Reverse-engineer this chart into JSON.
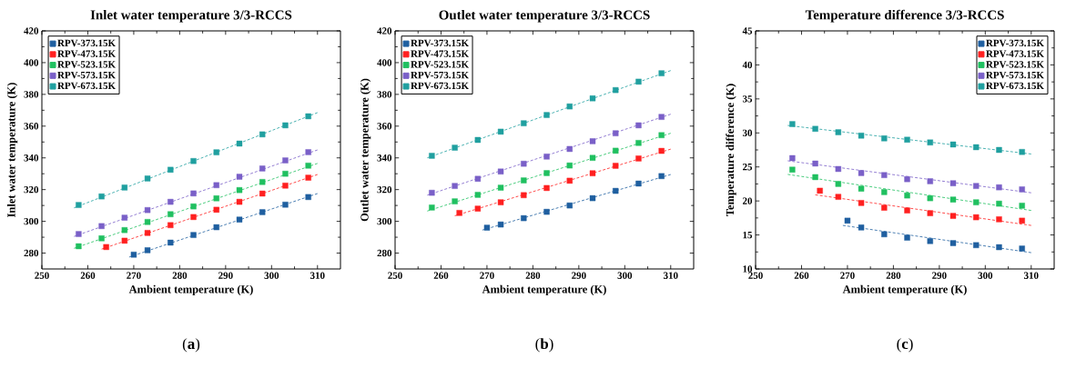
{
  "chart_data": [
    {
      "type": "scatter",
      "title": "Inlet water temperature 3/3-RCCS",
      "xlabel": "Ambient temperature (K)",
      "ylabel": "Inlet water temperature (K)",
      "xlim": [
        250,
        315
      ],
      "xticks": [
        250,
        260,
        270,
        280,
        290,
        300,
        310
      ],
      "ylim": [
        270,
        420
      ],
      "yticks": [
        280,
        300,
        320,
        340,
        360,
        380,
        400,
        420
      ],
      "marker": "square",
      "legend": "top left",
      "annotations": [
        "(**a**)"
      ],
      "series": [
        {
          "name": "RPV-373.15K",
          "color": "#1f5fa0",
          "x": [
            270,
            273,
            278,
            283,
            288,
            293,
            298,
            303,
            308
          ],
          "values": [
            279,
            281.8,
            286.6,
            291.4,
            296.3,
            301.1,
            305.8,
            310.5,
            315.3
          ]
        },
        {
          "name": "RPV-473.15K",
          "color": "#ff2020",
          "x": [
            264,
            268,
            273,
            278,
            283,
            288,
            293,
            298,
            303,
            308
          ],
          "values": [
            283.8,
            287.8,
            292.7,
            297.6,
            302.7,
            307.3,
            312.3,
            317.5,
            322.5,
            327.5
          ]
        },
        {
          "name": "RPV-523.15K",
          "color": "#20c060",
          "x": [
            258,
            263,
            268,
            273,
            278,
            283,
            288,
            293,
            298,
            303,
            308
          ],
          "values": [
            284.3,
            289.3,
            294.5,
            299.6,
            304.5,
            309.4,
            314.5,
            319.7,
            324.8,
            330,
            335.1
          ]
        },
        {
          "name": "RPV-573.15K",
          "color": "#7a60c8",
          "x": [
            258,
            263,
            268,
            273,
            278,
            283,
            288,
            293,
            298,
            303,
            308
          ],
          "values": [
            292,
            297,
            302.3,
            307.1,
            312.3,
            317.6,
            322.8,
            328.1,
            333.3,
            338.4,
            343.6
          ]
        },
        {
          "name": "RPV-673.15K",
          "color": "#20a0a0",
          "x": [
            258,
            263,
            268,
            273,
            278,
            283,
            288,
            293,
            298,
            303,
            308
          ],
          "values": [
            310.3,
            315.7,
            321.3,
            327,
            332.5,
            338,
            343.5,
            349,
            354.8,
            360.5,
            366.2
          ]
        },
        {
          "type": "line",
          "line_style": "dashed",
          "marker": "none",
          "color": "#1f5fa0",
          "x": [
            269,
            310
          ],
          "values": [
            277.5,
            317.5
          ]
        },
        {
          "type": "line",
          "line_style": "dashed",
          "marker": "none",
          "color": "#ff2020",
          "x": [
            263,
            310
          ],
          "values": [
            282.5,
            329.5
          ]
        },
        {
          "type": "line",
          "line_style": "dashed",
          "marker": "none",
          "color": "#20c060",
          "x": [
            257,
            310
          ],
          "values": [
            283,
            336.5
          ]
        },
        {
          "type": "line",
          "line_style": "dashed",
          "marker": "none",
          "color": "#7a60c8",
          "x": [
            257,
            310
          ],
          "values": [
            290.5,
            345
          ]
        },
        {
          "type": "line",
          "line_style": "dashed",
          "marker": "none",
          "color": "#20a0a0",
          "x": [
            257,
            310
          ],
          "values": [
            308.5,
            368.5
          ]
        }
      ]
    },
    {
      "type": "scatter",
      "title": "Outlet water temperature 3/3-RCCS",
      "xlabel": "Ambient temperature (K)",
      "ylabel": "Outlet water temperature (K)",
      "xlim": [
        250,
        315
      ],
      "xticks": [
        250,
        260,
        270,
        280,
        290,
        300,
        310
      ],
      "ylim": [
        270,
        420
      ],
      "yticks": [
        280,
        300,
        320,
        340,
        360,
        380,
        400,
        420
      ],
      "marker": "square",
      "legend": "top left",
      "annotations": [
        "(**b**)"
      ],
      "series": [
        {
          "name": "RPV-373.15K",
          "color": "#1f5fa0",
          "x": [
            270,
            273,
            278,
            283,
            288,
            293,
            298,
            303,
            308
          ],
          "values": [
            296,
            298,
            302,
            306,
            310,
            314.6,
            319.2,
            323.8,
            328.5
          ]
        },
        {
          "name": "RPV-473.15K",
          "color": "#ff2020",
          "x": [
            264,
            268,
            273,
            278,
            283,
            288,
            293,
            298,
            303,
            308
          ],
          "values": [
            305.3,
            308,
            312,
            316.5,
            321,
            325.6,
            330.3,
            335,
            339.6,
            344.4
          ]
        },
        {
          "name": "RPV-523.15K",
          "color": "#20c060",
          "x": [
            258,
            263,
            268,
            273,
            278,
            283,
            288,
            293,
            298,
            303,
            308
          ],
          "values": [
            308.7,
            312.6,
            316.7,
            321.2,
            325.8,
            330.4,
            335.2,
            340,
            344.5,
            349.4,
            354.3
          ]
        },
        {
          "name": "RPV-573.15K",
          "color": "#7a60c8",
          "x": [
            258,
            263,
            268,
            273,
            278,
            283,
            288,
            293,
            298,
            303,
            308
          ],
          "values": [
            318,
            322.3,
            326.8,
            331.4,
            336.3,
            340.8,
            345.6,
            350.5,
            355.5,
            360.5,
            365.8
          ]
        },
        {
          "name": "RPV-673.15K",
          "color": "#20a0a0",
          "x": [
            258,
            263,
            268,
            273,
            278,
            283,
            288,
            293,
            298,
            303,
            308
          ],
          "values": [
            341.3,
            346.4,
            351.3,
            356.5,
            361.8,
            367,
            372.4,
            377.5,
            382.7,
            388,
            393.3
          ]
        },
        {
          "type": "line",
          "line_style": "dashed",
          "marker": "none",
          "color": "#1f5fa0",
          "x": [
            269,
            310
          ],
          "values": [
            294.5,
            329.5
          ]
        },
        {
          "type": "line",
          "line_style": "dashed",
          "marker": "none",
          "color": "#ff2020",
          "x": [
            263,
            310
          ],
          "values": [
            303.5,
            345.5
          ]
        },
        {
          "type": "line",
          "line_style": "dashed",
          "marker": "none",
          "color": "#20c060",
          "x": [
            257,
            310
          ],
          "values": [
            306.5,
            355.5
          ]
        },
        {
          "type": "line",
          "line_style": "dashed",
          "marker": "none",
          "color": "#7a60c8",
          "x": [
            257,
            310
          ],
          "values": [
            316.5,
            367.5
          ]
        },
        {
          "type": "line",
          "line_style": "dashed",
          "marker": "none",
          "color": "#20a0a0",
          "x": [
            257,
            310
          ],
          "values": [
            340,
            395
          ]
        }
      ]
    },
    {
      "type": "scatter",
      "title": "Temperature difference 3/3-RCCS",
      "xlabel": "Ambient temperature (K)",
      "ylabel": "Temperature difference (K)",
      "xlim": [
        250,
        315
      ],
      "xticks": [
        250,
        260,
        270,
        280,
        290,
        300,
        310
      ],
      "ylim": [
        10,
        45
      ],
      "yticks": [
        10,
        15,
        20,
        25,
        30,
        35,
        40,
        45
      ],
      "marker": "square",
      "legend": "top right",
      "annotations": [
        "(**c**)"
      ],
      "series": [
        {
          "name": "RPV-373.15K",
          "color": "#1f5fa0",
          "x": [
            270,
            273,
            278,
            283,
            288,
            293,
            298,
            303,
            308
          ],
          "values": [
            17.1,
            16.1,
            15.1,
            14.6,
            14.1,
            13.8,
            13.5,
            13.2,
            13.0
          ]
        },
        {
          "name": "RPV-473.15K",
          "color": "#ff2020",
          "x": [
            264,
            268,
            273,
            278,
            283,
            288,
            293,
            298,
            303,
            308
          ],
          "values": [
            21.5,
            20.6,
            19.7,
            19.0,
            18.6,
            18.2,
            17.8,
            17.6,
            17.3,
            17.1
          ]
        },
        {
          "name": "RPV-523.15K",
          "color": "#20c060",
          "x": [
            258,
            263,
            268,
            273,
            278,
            283,
            288,
            293,
            298,
            303,
            308
          ],
          "values": [
            24.6,
            23.5,
            22.5,
            21.8,
            21.3,
            20.8,
            20.4,
            20.2,
            19.8,
            19.6,
            19.3
          ]
        },
        {
          "name": "RPV-573.15K",
          "color": "#7a60c8",
          "x": [
            258,
            263,
            268,
            273,
            278,
            283,
            288,
            293,
            298,
            303,
            308
          ],
          "values": [
            26.3,
            25.5,
            24.7,
            24.1,
            23.8,
            23.2,
            22.9,
            22.6,
            22.2,
            22.0,
            21.7
          ]
        },
        {
          "name": "RPV-673.15K",
          "color": "#20a0a0",
          "x": [
            258,
            263,
            268,
            273,
            278,
            283,
            288,
            293,
            298,
            303,
            308
          ],
          "values": [
            31.3,
            30.6,
            30.1,
            29.6,
            29.2,
            29.0,
            28.6,
            28.3,
            27.9,
            27.5,
            27.2
          ]
        },
        {
          "type": "line",
          "line_style": "dashed",
          "marker": "none",
          "color": "#1f5fa0",
          "x": [
            269,
            310
          ],
          "values": [
            16.4,
            12.4
          ]
        },
        {
          "type": "line",
          "line_style": "dashed",
          "marker": "none",
          "color": "#ff2020",
          "x": [
            263,
            310
          ],
          "values": [
            20.9,
            16.4
          ]
        },
        {
          "type": "line",
          "line_style": "dashed",
          "marker": "none",
          "color": "#20c060",
          "x": [
            257,
            310
          ],
          "values": [
            23.9,
            18.6
          ]
        },
        {
          "type": "line",
          "line_style": "dashed",
          "marker": "none",
          "color": "#7a60c8",
          "x": [
            257,
            310
          ],
          "values": [
            25.9,
            21.2
          ]
        },
        {
          "type": "line",
          "line_style": "dashed",
          "marker": "none",
          "color": "#20a0a0",
          "x": [
            257,
            310
          ],
          "values": [
            31.1,
            26.9
          ]
        }
      ]
    }
  ]
}
